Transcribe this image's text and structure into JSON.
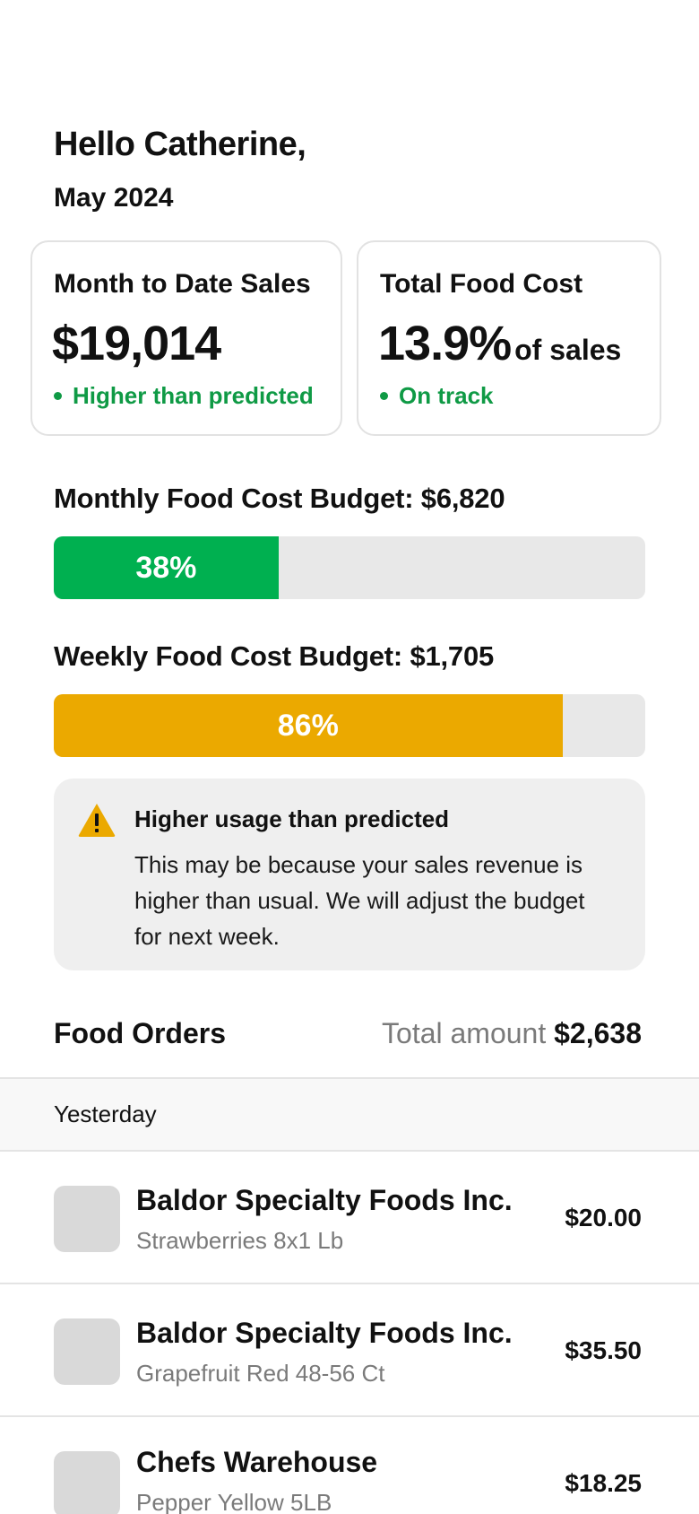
{
  "greeting": "Hello Catherine,",
  "period": "May 2024",
  "cards": {
    "sales": {
      "title": "Month to Date Sales",
      "value": "$19,014",
      "status": "Higher than predicted"
    },
    "food_cost": {
      "title": "Total Food Cost",
      "value": "13.9%",
      "suffix": "of sales",
      "status": "On track"
    }
  },
  "budgets": {
    "monthly": {
      "label": "Monthly Food Cost Budget: $6,820",
      "percent_label": "38%",
      "progress": 0.38,
      "color": "#00b050"
    },
    "weekly": {
      "label": "Weekly Food Cost Budget: $1,705",
      "percent_label": "86%",
      "progress": 0.86,
      "color": "#eba900"
    }
  },
  "alert": {
    "icon": "warning-icon",
    "title": "Higher usage than predicted",
    "body": "This may be because your sales revenue is higher than usual. We will adjust the budget for next week."
  },
  "orders": {
    "title": "Food Orders",
    "total_label": "Total amount",
    "total_amount": "$2,638",
    "group_label": "Yesterday",
    "items": [
      {
        "vendor": "Baldor Specialty Foods Inc.",
        "item": "Strawberries 8x1 Lb",
        "price": "$20.00"
      },
      {
        "vendor": "Baldor Specialty Foods Inc.",
        "item": "Grapefruit Red 48-56 Ct",
        "price": "$35.50"
      },
      {
        "vendor": "Chefs Warehouse",
        "item": "Pepper Yellow 5LB",
        "price": "$18.25"
      }
    ]
  },
  "colors": {
    "status_green": "#0f9a45",
    "warning": "#eba900"
  }
}
